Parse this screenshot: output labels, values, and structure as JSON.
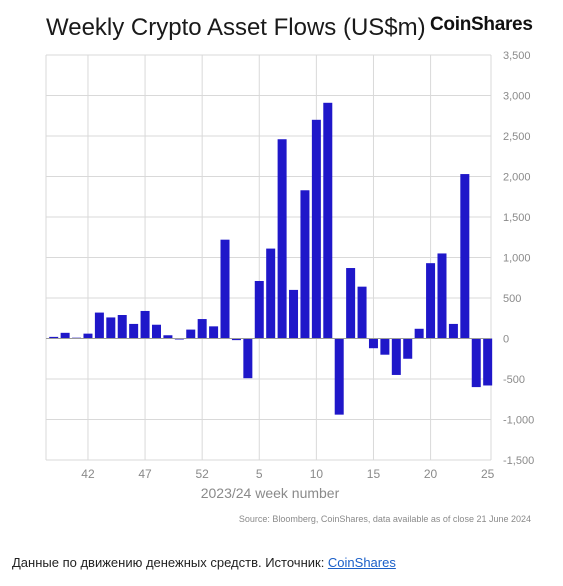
{
  "title": "Weekly Crypto Asset Flows (US$m)",
  "brand": "CoinShares",
  "source_note": "Source: Bloomberg, CoinShares, data available as of close 21 June 2024",
  "caption": {
    "text": "Данные по движению денежных средств. Источник: ",
    "link_text": "CoinShares"
  },
  "colors": {
    "bar": "#1f17c9",
    "grid": "#d9d9d9",
    "axis_text": "#8a8a8a"
  },
  "chart_data": {
    "type": "bar",
    "title": "Weekly Crypto Asset Flows (US$m)",
    "xlabel": "2023/24 week number",
    "ylabel": "",
    "ylim": [
      -1500,
      3500
    ],
    "y_ticks": [
      -1500,
      -1000,
      -500,
      0,
      500,
      1000,
      1500,
      2000,
      2500,
      3000,
      3500
    ],
    "y_tick_labels": [
      "-1,500",
      "-1,000",
      "-500",
      "0",
      "500",
      "1,000",
      "1,500",
      "2,000",
      "2,500",
      "3,000",
      "3,500"
    ],
    "x_tick_labels": [
      "42",
      "47",
      "52",
      "5",
      "10",
      "15",
      "20",
      "25"
    ],
    "grid_x": true,
    "grid_y": true,
    "weeks": [
      "39",
      "40",
      "41",
      "42",
      "43",
      "44",
      "45",
      "46",
      "47",
      "48",
      "49",
      "50",
      "51",
      "52",
      "1",
      "2",
      "3",
      "4",
      "5",
      "6",
      "7",
      "8",
      "9",
      "10",
      "11",
      "12",
      "13",
      "14",
      "15",
      "16",
      "17",
      "18",
      "19",
      "20",
      "21",
      "22",
      "23",
      "24",
      "25"
    ],
    "values": [
      20,
      70,
      10,
      60,
      320,
      260,
      290,
      180,
      340,
      170,
      40,
      -10,
      110,
      240,
      150,
      1220,
      -20,
      -490,
      710,
      1110,
      2460,
      600,
      1830,
      2700,
      2910,
      -940,
      870,
      640,
      -120,
      -200,
      -450,
      -250,
      120,
      930,
      1050,
      180,
      2030,
      -600,
      -580
    ]
  }
}
